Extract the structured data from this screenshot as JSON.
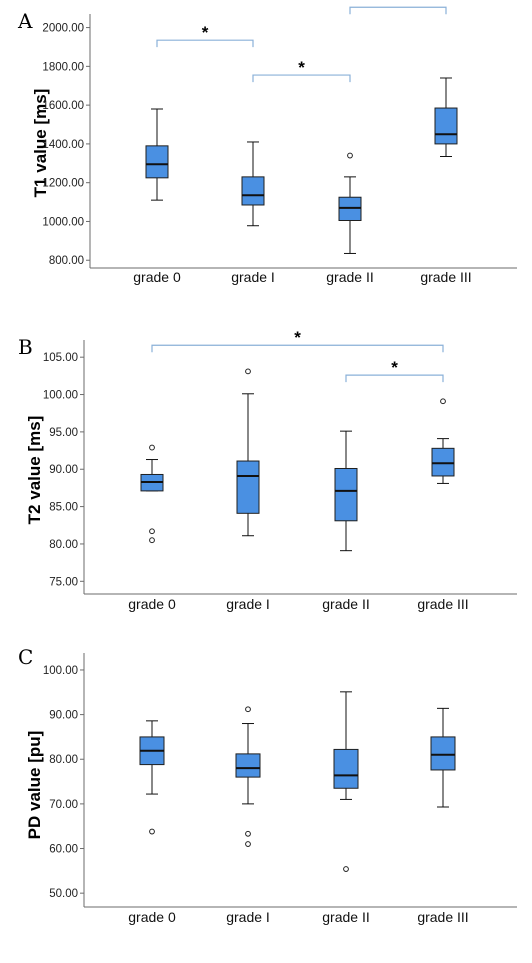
{
  "chart_data": [
    {
      "type": "box",
      "panel_label": "A",
      "ylabel": "T1 value [ms]",
      "categories": [
        "grade 0",
        "grade I",
        "grade II",
        "grade III"
      ],
      "yticks": [
        "800.00",
        "1000.00",
        "1200.00",
        "1400.00",
        "1600.00",
        "1800.00",
        "2000.00"
      ],
      "ylim": [
        760,
        2070
      ],
      "boxes": [
        {
          "whisker_low": 1110,
          "q1": 1225,
          "median": 1295,
          "q3": 1390,
          "whisker_high": 1580,
          "outliers": []
        },
        {
          "whisker_low": 978,
          "q1": 1085,
          "median": 1135,
          "q3": 1230,
          "whisker_high": 1410,
          "outliers": []
        },
        {
          "whisker_low": 835,
          "q1": 1005,
          "median": 1070,
          "q3": 1125,
          "whisker_high": 1230,
          "outliers": [
            1340
          ]
        },
        {
          "whisker_low": 1335,
          "q1": 1400,
          "median": 1450,
          "q3": 1585,
          "whisker_high": 1740,
          "outliers": []
        }
      ],
      "significance": [
        {
          "from": 0,
          "to": 1,
          "y": 1935,
          "label": "*"
        },
        {
          "from": 1,
          "to": 2,
          "y": 1755,
          "label": "*"
        },
        {
          "from": 2,
          "to": 3,
          "y": 2105,
          "label": "*"
        }
      ]
    },
    {
      "type": "box",
      "panel_label": "B",
      "ylabel": "T2 value [ms]",
      "categories": [
        "grade 0",
        "grade I",
        "grade II",
        "grade III"
      ],
      "yticks": [
        "75.00",
        "80.00",
        "85.00",
        "90.00",
        "95.00",
        "100.00",
        "105.00"
      ],
      "ylim": [
        73.3,
        107.3
      ],
      "boxes": [
        {
          "whisker_low": 87.1,
          "q1": 87.1,
          "median": 88.3,
          "q3": 89.3,
          "whisker_high": 91.3,
          "outliers": [
            92.9,
            81.7,
            80.5
          ]
        },
        {
          "whisker_low": 81.1,
          "q1": 84.1,
          "median": 89.1,
          "q3": 91.1,
          "whisker_high": 100.1,
          "outliers": [
            103.1
          ]
        },
        {
          "whisker_low": 79.1,
          "q1": 83.1,
          "median": 87.1,
          "q3": 90.1,
          "whisker_high": 95.1,
          "outliers": []
        },
        {
          "whisker_low": 88.1,
          "q1": 89.1,
          "median": 90.8,
          "q3": 92.8,
          "whisker_high": 94.1,
          "outliers": [
            99.1
          ]
        }
      ],
      "significance": [
        {
          "from": 0,
          "to": 3,
          "y": 106.6,
          "label": "*"
        },
        {
          "from": 2,
          "to": 3,
          "y": 102.6,
          "label": "*"
        }
      ]
    },
    {
      "type": "box",
      "panel_label": "C",
      "ylabel": "PD value [pu]",
      "categories": [
        "grade 0",
        "grade I",
        "grade II",
        "grade III"
      ],
      "yticks": [
        "50.00",
        "60.00",
        "70.00",
        "80.00",
        "90.00",
        "100.00"
      ],
      "ylim": [
        46.9,
        103.8
      ],
      "boxes": [
        {
          "whisker_low": 72.2,
          "q1": 78.8,
          "median": 81.9,
          "q3": 85.0,
          "whisker_high": 88.6,
          "outliers": [
            63.8
          ]
        },
        {
          "whisker_low": 70.0,
          "q1": 76.0,
          "median": 78.0,
          "q3": 81.2,
          "whisker_high": 88.0,
          "outliers": [
            91.2,
            63.3,
            61.0
          ]
        },
        {
          "whisker_low": 71.0,
          "q1": 73.5,
          "median": 76.4,
          "q3": 82.2,
          "whisker_high": 95.1,
          "outliers": [
            55.4
          ]
        },
        {
          "whisker_low": 69.3,
          "q1": 77.6,
          "median": 81.0,
          "q3": 85.0,
          "whisker_high": 91.4,
          "outliers": []
        }
      ],
      "significance": []
    }
  ]
}
